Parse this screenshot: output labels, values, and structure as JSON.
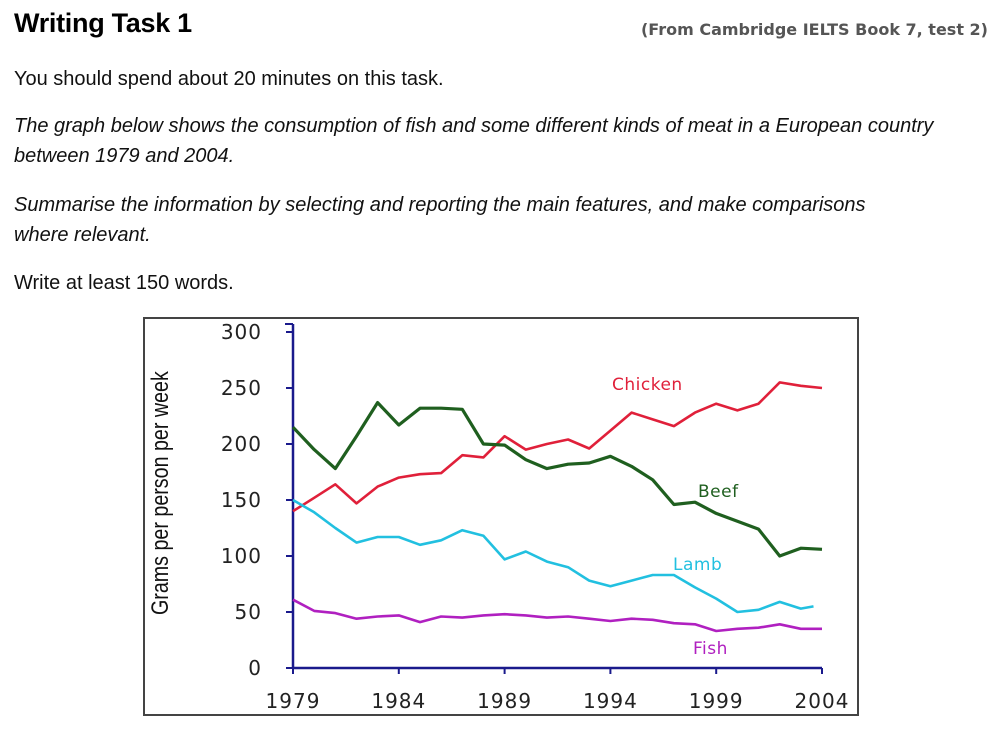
{
  "header": {
    "title": "Writing Task 1",
    "source": "(From Cambridge IELTS Book 7, test 2)"
  },
  "instructions": {
    "time": "You should spend about 20 minutes on this task.",
    "prompt": "The graph below shows the consumption of fish and some different kinds of meat in a European country between 1979 and 2004.",
    "task": "Summarise the information by selecting and reporting the main features, and make comparisons where relevant.",
    "length": "Write at least 150 words."
  },
  "chart_data": {
    "type": "line",
    "title": "",
    "xlabel": "",
    "ylabel": "Grams per person per week",
    "x": [
      1979,
      1980,
      1981,
      1982,
      1983,
      1984,
      1985,
      1986,
      1987,
      1988,
      1989,
      1990,
      1991,
      1992,
      1993,
      1994,
      1995,
      1996,
      1997,
      1998,
      1999,
      2000,
      2001,
      2002,
      2003,
      2004
    ],
    "x_ticks": [
      "1979",
      "1984",
      "1989",
      "1994",
      "1999",
      "2004"
    ],
    "y_ticks": [
      "0",
      "50",
      "100",
      "150",
      "200",
      "250",
      "300"
    ],
    "ylim": [
      0,
      300
    ],
    "xlim": [
      1979,
      2004
    ],
    "grid": false,
    "legend": "inline labels",
    "series": [
      {
        "name": "Chicken",
        "color": "#e0203a",
        "label_pos": "above-right",
        "values": [
          140,
          152,
          164,
          147,
          162,
          170,
          173,
          174,
          190,
          188,
          207,
          195,
          200,
          204,
          196,
          212,
          228,
          222,
          216,
          228,
          236,
          230,
          236,
          255,
          252,
          250
        ]
      },
      {
        "name": "Beef",
        "color": "#1f5f1f",
        "label_pos": "right",
        "values": [
          215,
          195,
          178,
          207,
          237,
          217,
          232,
          232,
          231,
          200,
          199,
          186,
          178,
          182,
          183,
          189,
          180,
          168,
          146,
          148,
          138,
          131,
          124,
          100,
          107,
          106
        ]
      },
      {
        "name": "Lamb",
        "color": "#22c0e0",
        "label_pos": "right",
        "values": [
          150,
          139,
          125,
          112,
          117,
          117,
          110,
          114,
          123,
          118,
          97,
          104,
          95,
          90,
          78,
          73,
          78,
          83,
          83,
          72,
          62,
          50,
          52,
          59,
          53,
          55
        ]
      },
      {
        "name": "Fish",
        "color": "#b020c0",
        "label_pos": "bottom-right",
        "values": [
          61,
          51,
          49,
          44,
          46,
          47,
          41,
          46,
          45,
          47,
          48,
          47,
          45,
          46,
          44,
          42,
          44,
          43,
          40,
          39,
          33,
          35,
          36,
          39,
          35,
          35
        ]
      }
    ]
  }
}
